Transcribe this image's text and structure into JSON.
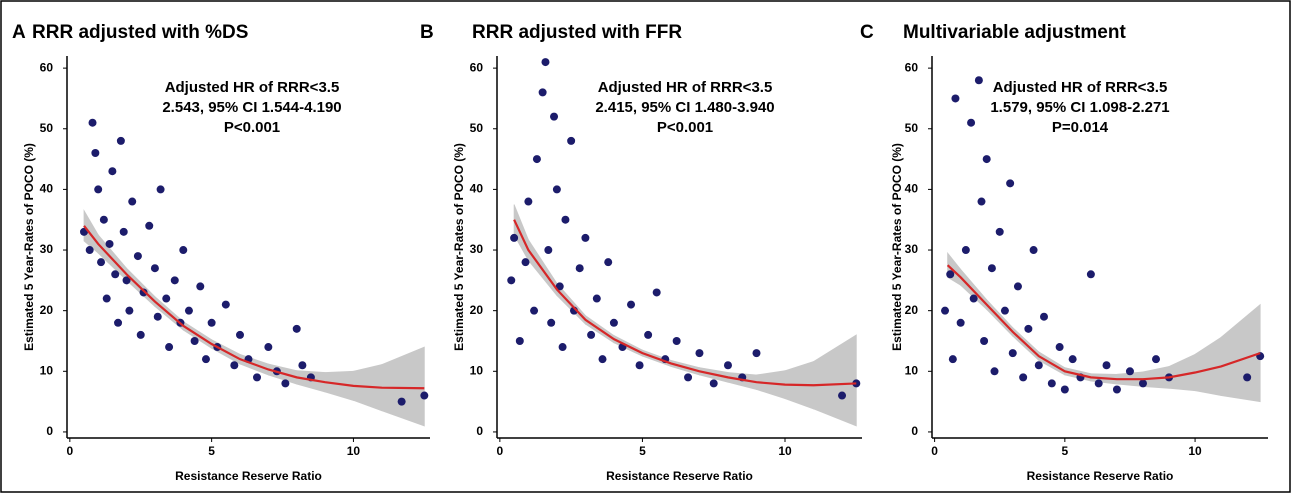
{
  "chart_data": [
    {
      "type": "scatter",
      "panel": "A",
      "title": "RRR adjusted with %DS",
      "annotation": [
        "Adjusted HR of RRR<3.5",
        "2.543, 95% CI 1.544-4.190",
        "P<0.001"
      ],
      "xlabel": "Resistance Reserve Ratio",
      "ylabel": "Estimated 5 Year-Rates of POCO (%)",
      "xlim": [
        -0.1,
        12.7
      ],
      "ylim": [
        -1,
        62
      ],
      "xticks": [
        0,
        5,
        10
      ],
      "yticks": [
        0,
        10,
        20,
        30,
        40,
        50,
        60
      ],
      "color": "#1c1c6b",
      "x": [
        0.5,
        0.7,
        0.8,
        0.9,
        1,
        1.1,
        1.2,
        1.3,
        1.4,
        1.5,
        1.6,
        1.7,
        1.8,
        1.9,
        2,
        2.1,
        2.2,
        2.4,
        2.5,
        2.6,
        2.8,
        3,
        3.1,
        3.2,
        3.4,
        3.5,
        3.7,
        3.9,
        4,
        4.2,
        4.4,
        4.6,
        4.8,
        5,
        5.2,
        5.5,
        5.8,
        6,
        6.3,
        6.6,
        7,
        7.3,
        7.6,
        8,
        8.2,
        8.5,
        11.7,
        12.5
      ],
      "y": [
        33,
        30,
        51,
        46,
        40,
        28,
        35,
        22,
        31,
        43,
        26,
        18,
        48,
        33,
        25,
        20,
        38,
        29,
        16,
        23,
        34,
        27,
        19,
        40,
        22,
        14,
        25,
        18,
        30,
        20,
        15,
        24,
        12,
        18,
        14,
        21,
        11,
        16,
        12,
        9,
        14,
        10,
        8,
        17,
        11,
        9,
        5,
        6
      ],
      "fit": {
        "color": "#d62728",
        "band_color": "#c8c8c8",
        "x": [
          0.5,
          1,
          2,
          3,
          4,
          5,
          6,
          7,
          8,
          9,
          10,
          11,
          12.5
        ],
        "y": [
          34,
          31,
          26,
          21.5,
          17.5,
          14.5,
          12,
          10.3,
          9,
          8.2,
          7.6,
          7.3,
          7.2
        ],
        "lower": [
          31.5,
          29.5,
          25,
          20.7,
          16.8,
          13.8,
          11.2,
          9.4,
          7.9,
          6.6,
          5.2,
          3.5,
          1
        ],
        "upper": [
          36.5,
          32.5,
          27,
          22.3,
          18.2,
          15.2,
          12.8,
          11.2,
          10.1,
          9.8,
          10,
          11.1,
          14
        ]
      }
    },
    {
      "type": "scatter",
      "panel": "B",
      "title": "RRR adjusted with FFR",
      "annotation": [
        "Adjusted HR of RRR<3.5",
        "2.415, 95% CI 1.480-3.940",
        "P<0.001"
      ],
      "xlabel": "Resistance Reserve Ratio",
      "ylabel": "Estimated 5 Year-Rates of POCO (%)",
      "xlim": [
        -0.1,
        12.7
      ],
      "ylim": [
        -1,
        62
      ],
      "xticks": [
        0,
        5,
        10
      ],
      "yticks": [
        0,
        10,
        20,
        30,
        40,
        50,
        60
      ],
      "color": "#1c1c6b",
      "x": [
        0.4,
        0.5,
        0.7,
        0.9,
        1,
        1.2,
        1.3,
        1.5,
        1.6,
        1.7,
        1.8,
        1.9,
        2,
        2.1,
        2.2,
        2.3,
        2.5,
        2.6,
        2.8,
        3,
        3.2,
        3.4,
        3.6,
        3.8,
        4,
        4.3,
        4.6,
        4.9,
        5.2,
        5.5,
        5.8,
        6.2,
        6.6,
        7,
        7.5,
        8,
        8.5,
        9,
        12,
        12.5
      ],
      "y": [
        25,
        32,
        15,
        28,
        38,
        20,
        45,
        56,
        61,
        30,
        18,
        52,
        40,
        24,
        14,
        35,
        48,
        20,
        27,
        32,
        16,
        22,
        12,
        28,
        18,
        14,
        21,
        11,
        16,
        23,
        12,
        15,
        9,
        13,
        8,
        11,
        9,
        13,
        6,
        8
      ],
      "fit": {
        "color": "#d62728",
        "band_color": "#c8c8c8",
        "x": [
          0.5,
          1,
          2,
          3,
          4,
          5,
          6,
          7,
          8,
          9,
          10,
          11,
          12.5
        ],
        "y": [
          35,
          30,
          23.5,
          18.5,
          15.3,
          13,
          11.3,
          10,
          9,
          8.2,
          7.8,
          7.7,
          8
        ],
        "lower": [
          32.5,
          28.3,
          22.5,
          17.8,
          14.7,
          12.5,
          10.8,
          9.4,
          8.2,
          7,
          5.5,
          3.8,
          1
        ],
        "upper": [
          37.5,
          31.7,
          24.5,
          19.2,
          15.9,
          13.5,
          11.8,
          10.6,
          9.8,
          9.4,
          10.1,
          11.6,
          16
        ]
      }
    },
    {
      "type": "scatter",
      "panel": "C",
      "title": "Multivariable adjustment",
      "annotation": [
        "Adjusted HR of RRR<3.5",
        "1.579, 95% CI 1.098-2.271",
        "P=0.014"
      ],
      "xlabel": "Resistance Reserve Ratio",
      "ylabel": "Estimated 5 Year-Rates of POCO (%)",
      "xlim": [
        -0.1,
        12.8
      ],
      "ylim": [
        -1,
        62
      ],
      "xticks": [
        0,
        5,
        10
      ],
      "yticks": [
        0,
        10,
        20,
        30,
        40,
        50,
        60
      ],
      "color": "#1c1c6b",
      "x": [
        0.4,
        0.6,
        0.7,
        0.8,
        1,
        1.2,
        1.4,
        1.5,
        1.7,
        1.8,
        1.9,
        2,
        2.2,
        2.3,
        2.5,
        2.7,
        2.9,
        3,
        3.2,
        3.4,
        3.6,
        3.8,
        4,
        4.2,
        4.5,
        4.8,
        5,
        5.3,
        5.6,
        6,
        6.3,
        6.6,
        7,
        7.5,
        8,
        8.5,
        9,
        12,
        12.5
      ],
      "y": [
        20,
        26,
        12,
        55,
        18,
        30,
        51,
        22,
        58,
        38,
        15,
        45,
        27,
        10,
        33,
        20,
        41,
        13,
        24,
        9,
        17,
        30,
        11,
        19,
        8,
        14,
        7,
        12,
        9,
        26,
        8,
        11,
        7,
        10,
        8,
        12,
        9,
        9,
        12.5
      ],
      "fit": {
        "color": "#d62728",
        "band_color": "#c8c8c8",
        "x": [
          0.5,
          1,
          2,
          3,
          4,
          5,
          6,
          7,
          8,
          9,
          10,
          11,
          12.5
        ],
        "y": [
          27.5,
          25.5,
          21,
          16.5,
          12.5,
          10,
          9,
          8.7,
          8.7,
          9,
          9.8,
          10.8,
          13
        ],
        "lower": [
          25.5,
          24.2,
          20.2,
          15.8,
          11.8,
          9.4,
          8.4,
          7.9,
          7.5,
          7.2,
          6.8,
          6,
          5
        ],
        "upper": [
          29.5,
          26.8,
          21.8,
          17.2,
          13.2,
          10.6,
          9.6,
          9.5,
          9.9,
          10.8,
          12.8,
          15.6,
          21
        ]
      }
    }
  ]
}
